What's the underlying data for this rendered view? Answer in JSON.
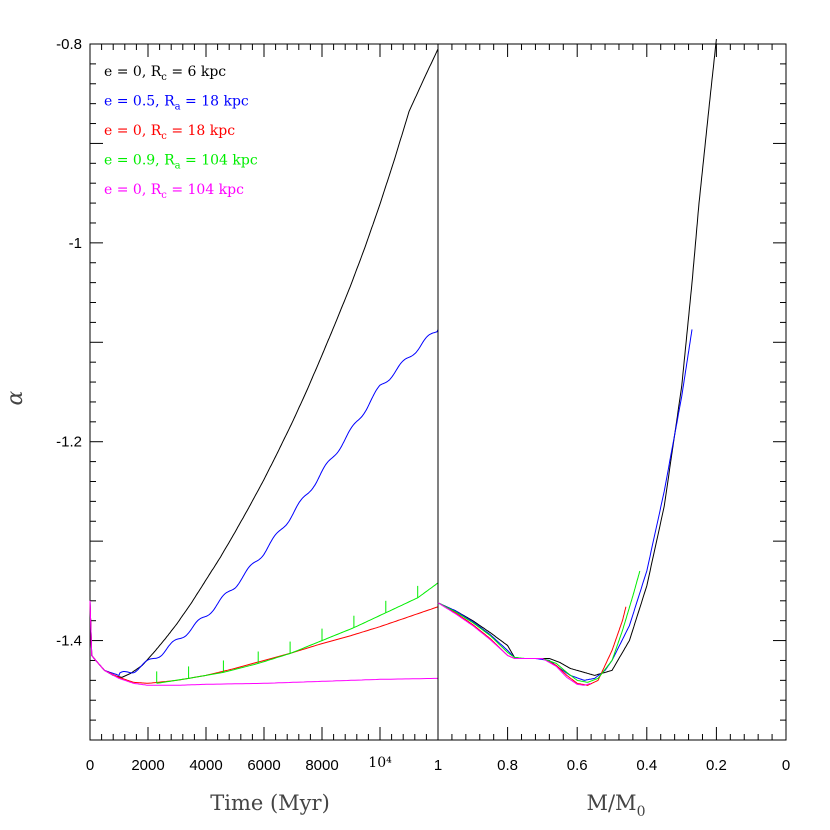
{
  "chart_data": [
    {
      "panel": "left",
      "type": "line",
      "xlabel": "Time (Myr)",
      "ylabel": "α",
      "xlim": [
        0,
        12000
      ],
      "ylim": [
        -1.5,
        -0.8
      ],
      "xticks": [
        0,
        2000,
        4000,
        6000,
        8000,
        10000
      ],
      "xtick_labels": [
        "0",
        "2000",
        "4000",
        "6000",
        "8000",
        "10⁴"
      ],
      "yticks": [
        -1.4,
        -1.2,
        -1.0,
        -0.8
      ],
      "ytick_labels": [
        "-1.4",
        "-1.2",
        "-1",
        "-0.8"
      ],
      "legend": [
        {
          "name": "e = 0, R_c = 6 kpc",
          "color": "#000000",
          "pre": "e = 0, R",
          "sub": "c",
          "post": " = 6 kpc"
        },
        {
          "name": "e = 0.5, R_a = 18 kpc",
          "color": "#0000ff",
          "pre": "e = 0.5, R",
          "sub": "a",
          "post": " = 18 kpc"
        },
        {
          "name": "e = 0, R_c = 18 kpc",
          "color": "#ff0000",
          "pre": "e = 0, R",
          "sub": "c",
          "post": " = 18 kpc"
        },
        {
          "name": "e = 0.9, R_a = 104 kpc",
          "color": "#00ee00",
          "pre": "e = 0.9, R",
          "sub": "a",
          "post": " = 104 kpc"
        },
        {
          "name": "e = 0, R_c = 104 kpc",
          "color": "#ff00ff",
          "pre": "e = 0, R",
          "sub": "c",
          "post": " = 104 kpc"
        }
      ],
      "series": [
        {
          "name": "e = 0, R_c = 6 kpc",
          "color": "#000000",
          "x": [
            0,
            60,
            200,
            500,
            800,
            1100,
            1400,
            1800,
            2200,
            2600,
            3000,
            3500,
            4000,
            4500,
            5000,
            5500,
            6000,
            6500,
            7000,
            7500,
            8000,
            8500,
            9000,
            9500,
            10000,
            10500,
            11000,
            11500,
            12000
          ],
          "y": [
            -1.36,
            -1.415,
            -1.42,
            -1.43,
            -1.435,
            -1.437,
            -1.433,
            -1.425,
            -1.412,
            -1.398,
            -1.383,
            -1.362,
            -1.339,
            -1.316,
            -1.291,
            -1.265,
            -1.238,
            -1.209,
            -1.179,
            -1.147,
            -1.113,
            -1.078,
            -1.042,
            -1.003,
            -0.961,
            -0.916,
            -0.868,
            -0.836,
            -0.805
          ]
        },
        {
          "name": "e = 0.5, R_a = 18 kpc",
          "color": "#0000ff",
          "x": [
            0,
            60,
            200,
            500,
            1000,
            1500,
            2000,
            2500,
            3000,
            3500,
            4000,
            4500,
            5000,
            5500,
            6000,
            6500,
            7000,
            7500,
            8000,
            8500,
            9000,
            9500,
            10000,
            10500,
            11000,
            11500,
            12000
          ],
          "y": [
            -1.36,
            -1.415,
            -1.42,
            -1.43,
            -1.435,
            -1.43,
            -1.422,
            -1.412,
            -1.4,
            -1.388,
            -1.375,
            -1.36,
            -1.345,
            -1.328,
            -1.311,
            -1.292,
            -1.272,
            -1.252,
            -1.231,
            -1.21,
            -1.189,
            -1.167,
            -1.145,
            -1.13,
            -1.115,
            -1.1,
            -1.087
          ]
        },
        {
          "name": "e = 0, R_c = 18 kpc",
          "color": "#ff0000",
          "x": [
            0,
            60,
            200,
            500,
            1000,
            1500,
            2000,
            3000,
            4000,
            5000,
            6000,
            7000,
            8000,
            9000,
            10000,
            11000,
            12000
          ],
          "y": [
            -1.36,
            -1.415,
            -1.42,
            -1.43,
            -1.437,
            -1.442,
            -1.443,
            -1.44,
            -1.435,
            -1.428,
            -1.42,
            -1.412,
            -1.403,
            -1.395,
            -1.386,
            -1.376,
            -1.366
          ]
        },
        {
          "name": "e = 0.9, R_a = 104 kpc",
          "color": "#00ee00",
          "x": [
            2300,
            3400,
            4600,
            5800,
            6900,
            8000,
            9100,
            10200,
            11300,
            12000
          ],
          "y": [
            -1.443,
            -1.438,
            -1.432,
            -1.423,
            -1.413,
            -1.4,
            -1.387,
            -1.372,
            -1.357,
            -1.342
          ]
        },
        {
          "name": "e = 0, R_c = 104 kpc",
          "color": "#ff00ff",
          "x": [
            0,
            60,
            200,
            500,
            1000,
            1500,
            2000,
            3000,
            4000,
            6000,
            8000,
            10000,
            12000
          ],
          "y": [
            -1.36,
            -1.415,
            -1.42,
            -1.43,
            -1.438,
            -1.443,
            -1.445,
            -1.445,
            -1.444,
            -1.443,
            -1.441,
            -1.439,
            -1.438
          ]
        }
      ]
    },
    {
      "panel": "right",
      "type": "line",
      "xlabel": "M/M₀",
      "xlabel_pre": "M/M",
      "xlabel_sub": "0",
      "xlim": [
        1,
        0
      ],
      "ylim": [
        -1.5,
        -0.8
      ],
      "xticks": [
        1,
        0.8,
        0.6,
        0.4,
        0.2,
        0
      ],
      "xtick_labels": [
        "1",
        "0.8",
        "0.6",
        "0.4",
        "0.2",
        "0"
      ],
      "series": [
        {
          "name": "e = 0, R_c = 6 kpc",
          "color": "#000000",
          "x": [
            1.0,
            0.95,
            0.9,
            0.85,
            0.8,
            0.78,
            0.76,
            0.72,
            0.68,
            0.65,
            0.62,
            0.58,
            0.55,
            0.5,
            0.45,
            0.4,
            0.35,
            0.3,
            0.27,
            0.25,
            0.22,
            0.2
          ],
          "y": [
            -1.362,
            -1.37,
            -1.38,
            -1.392,
            -1.405,
            -1.417,
            -1.418,
            -1.418,
            -1.418,
            -1.422,
            -1.428,
            -1.432,
            -1.435,
            -1.43,
            -1.4,
            -1.345,
            -1.265,
            -1.145,
            -1.04,
            -0.96,
            -0.86,
            -0.795
          ]
        },
        {
          "name": "e = 0.5, R_a = 18 kpc",
          "color": "#0000ff",
          "x": [
            1.0,
            0.95,
            0.9,
            0.85,
            0.8,
            0.78,
            0.76,
            0.72,
            0.68,
            0.65,
            0.62,
            0.58,
            0.55,
            0.52,
            0.5,
            0.45,
            0.4,
            0.35,
            0.3,
            0.27
          ],
          "y": [
            -1.362,
            -1.37,
            -1.381,
            -1.394,
            -1.41,
            -1.417,
            -1.418,
            -1.418,
            -1.42,
            -1.428,
            -1.435,
            -1.44,
            -1.438,
            -1.43,
            -1.42,
            -1.385,
            -1.33,
            -1.25,
            -1.155,
            -1.087
          ]
        },
        {
          "name": "e = 0, R_c = 18 kpc",
          "color": "#ff0000",
          "x": [
            1.0,
            0.95,
            0.9,
            0.85,
            0.8,
            0.78,
            0.75,
            0.7,
            0.66,
            0.63,
            0.6,
            0.57,
            0.54,
            0.5,
            0.47,
            0.46
          ],
          "y": [
            -1.362,
            -1.372,
            -1.384,
            -1.398,
            -1.415,
            -1.418,
            -1.418,
            -1.418,
            -1.425,
            -1.435,
            -1.443,
            -1.445,
            -1.44,
            -1.41,
            -1.38,
            -1.366
          ]
        },
        {
          "name": "e = 0.9, R_a = 104 kpc",
          "color": "#00ee00",
          "x": [
            1.0,
            0.95,
            0.9,
            0.85,
            0.8,
            0.78,
            0.75,
            0.7,
            0.66,
            0.63,
            0.6,
            0.57,
            0.54,
            0.5,
            0.47,
            0.44,
            0.42
          ],
          "y": [
            -1.362,
            -1.371,
            -1.382,
            -1.395,
            -1.412,
            -1.417,
            -1.418,
            -1.418,
            -1.423,
            -1.432,
            -1.44,
            -1.442,
            -1.438,
            -1.42,
            -1.39,
            -1.355,
            -1.33
          ]
        },
        {
          "name": "e = 0, R_c = 104 kpc",
          "color": "#ff00ff",
          "x": [
            1.0,
            0.95,
            0.9,
            0.85,
            0.8,
            0.78,
            0.75,
            0.7,
            0.66,
            0.63,
            0.6,
            0.58,
            0.56
          ],
          "y": [
            -1.362,
            -1.373,
            -1.385,
            -1.399,
            -1.415,
            -1.418,
            -1.418,
            -1.418,
            -1.426,
            -1.437,
            -1.444,
            -1.445,
            -1.443
          ]
        }
      ]
    }
  ]
}
